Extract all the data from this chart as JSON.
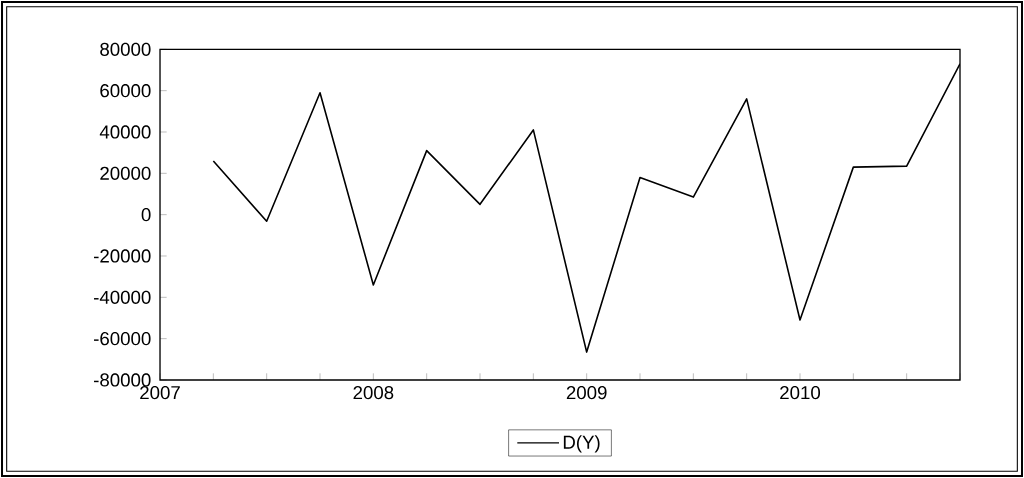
{
  "chart_data": {
    "type": "line",
    "x": [
      2007.25,
      2007.5,
      2007.75,
      2008,
      2008.25,
      2008.5,
      2008.75,
      2009,
      2009.25,
      2009.5,
      2009.75,
      2010,
      2010.25,
      2010.5,
      2010.75
    ],
    "series": [
      {
        "name": "D(Y)",
        "color": "#000000",
        "values": [
          26000,
          -3200,
          59000,
          -34000,
          31000,
          5000,
          41000,
          -66500,
          18000,
          8500,
          56000,
          -51000,
          23000,
          23500,
          73000
        ]
      }
    ],
    "xlim": [
      2007,
      2010.75
    ],
    "xticks": [
      2007,
      {
        "value": 2007.25,
        "label": null
      },
      {
        "value": 2007.5,
        "label": null
      },
      {
        "value": 2007.75,
        "label": null
      },
      2008,
      {
        "value": 2008.25,
        "label": null
      },
      {
        "value": 2008.5,
        "label": null
      },
      {
        "value": 2008.75,
        "label": null
      },
      2009,
      {
        "value": 2009.25,
        "label": null
      },
      {
        "value": 2009.5,
        "label": null
      },
      {
        "value": 2009.75,
        "label": null
      },
      2010,
      {
        "value": 2010.25,
        "label": null
      },
      {
        "value": 2010.5,
        "label": null
      },
      {
        "value": 2010.75,
        "label": null
      }
    ],
    "ylim": [
      -80000,
      80000
    ],
    "yticks": [
      -80000,
      -60000,
      -40000,
      -20000,
      0,
      20000,
      40000,
      60000,
      80000
    ],
    "grid": false,
    "legend": "bottom",
    "marker": "none",
    "line_style": "solid"
  }
}
